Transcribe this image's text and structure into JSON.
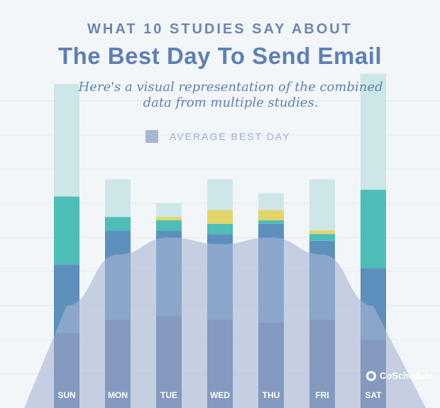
{
  "header": {
    "kicker": "WHAT 10 STUDIES SAY ABOUT",
    "title": "The Best Day To Send Email",
    "subtitle": "Here's a visual representation of the combined data from multiple studies."
  },
  "legend": {
    "label": "AVERAGE BEST DAY",
    "color": "#a9b6d3"
  },
  "brand": {
    "name": "CoSchedule",
    "icon": "coschedule-logo-icon"
  },
  "chart_data": {
    "type": "bar",
    "categories": [
      "SUN",
      "MON",
      "TUE",
      "WED",
      "THU",
      "FRI",
      "SAT"
    ],
    "ylim": [
      0,
      100
    ],
    "grid": true,
    "legend_placement": "top",
    "colors": {
      "light": "#cde7e8",
      "teal": "#4dbdb8",
      "yellow": "#e3d46a",
      "mid": "#5d8fbd",
      "dark": "#4f6fa0",
      "area": "#a9b6d3"
    },
    "average_best_day": [
      30,
      45,
      50,
      48,
      50,
      45,
      30
    ],
    "bars": [
      {
        "day": "SUN",
        "total": 95,
        "segments": [
          {
            "color": "dark",
            "value": 22
          },
          {
            "color": "mid",
            "value": 20
          },
          {
            "color": "teal",
            "value": 20
          },
          {
            "color": "light",
            "value": 33
          }
        ]
      },
      {
        "day": "MON",
        "total": 67,
        "segments": [
          {
            "color": "dark",
            "value": 26
          },
          {
            "color": "mid",
            "value": 26
          },
          {
            "color": "teal",
            "value": 4
          },
          {
            "color": "light",
            "value": 11
          }
        ]
      },
      {
        "day": "TUE",
        "total": 60,
        "segments": [
          {
            "color": "dark",
            "value": 27
          },
          {
            "color": "mid",
            "value": 25
          },
          {
            "color": "teal",
            "value": 3
          },
          {
            "color": "yellow",
            "value": 1
          },
          {
            "color": "light",
            "value": 4
          }
        ]
      },
      {
        "day": "WED",
        "total": 67,
        "segments": [
          {
            "color": "dark",
            "value": 26
          },
          {
            "color": "mid",
            "value": 25
          },
          {
            "color": "teal",
            "value": 3
          },
          {
            "color": "yellow",
            "value": 4
          },
          {
            "color": "light",
            "value": 9
          }
        ]
      },
      {
        "day": "THU",
        "total": 63,
        "segments": [
          {
            "color": "dark",
            "value": 25
          },
          {
            "color": "mid",
            "value": 29
          },
          {
            "color": "teal",
            "value": 1
          },
          {
            "color": "yellow",
            "value": 3
          },
          {
            "color": "light",
            "value": 5
          }
        ]
      },
      {
        "day": "FRI",
        "total": 67,
        "segments": [
          {
            "color": "dark",
            "value": 26
          },
          {
            "color": "mid",
            "value": 23
          },
          {
            "color": "teal",
            "value": 2
          },
          {
            "color": "yellow",
            "value": 1
          },
          {
            "color": "light",
            "value": 15
          }
        ]
      },
      {
        "day": "SAT",
        "total": 98,
        "segments": [
          {
            "color": "dark",
            "value": 20
          },
          {
            "color": "mid",
            "value": 21
          },
          {
            "color": "teal",
            "value": 23
          },
          {
            "color": "light",
            "value": 34
          }
        ]
      }
    ]
  }
}
